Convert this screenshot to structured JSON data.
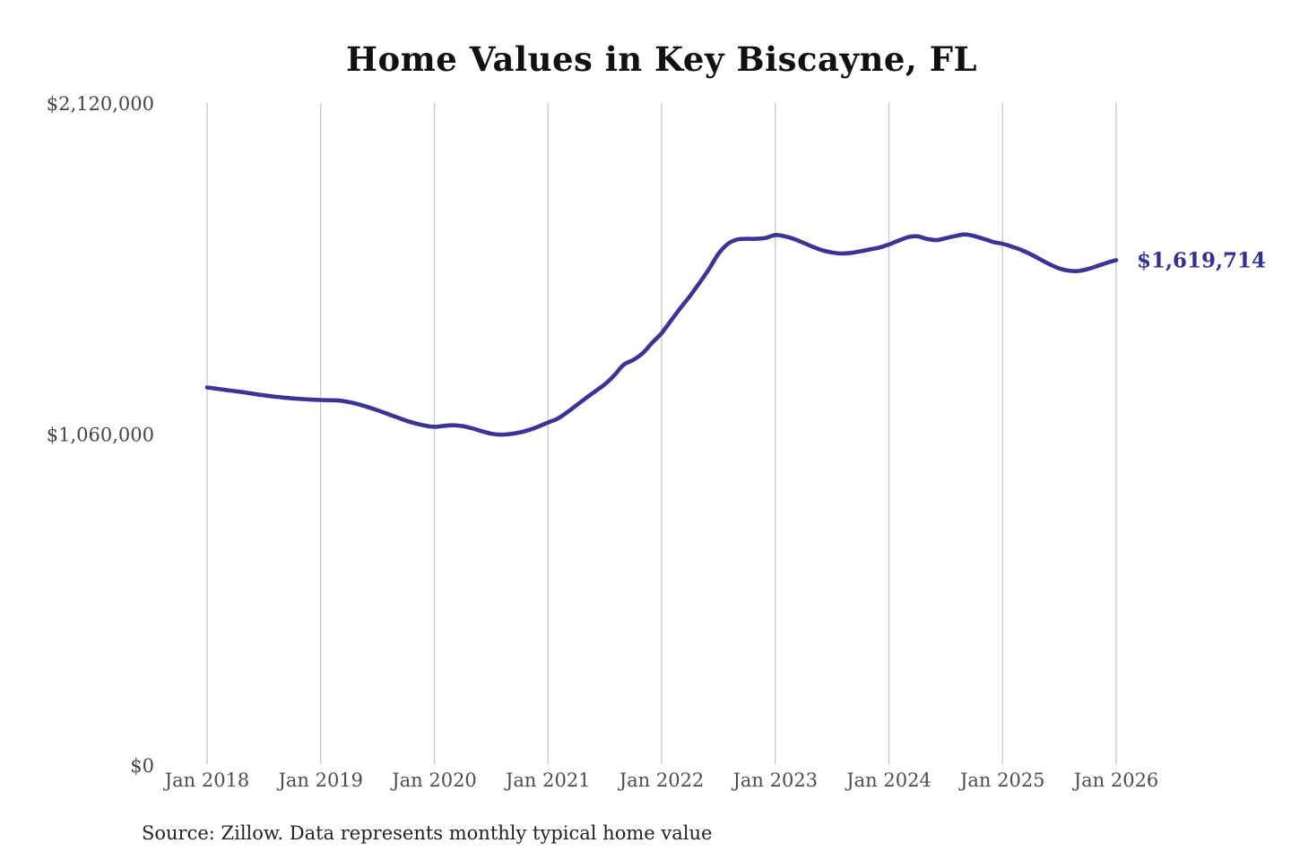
{
  "page": {
    "title": "Home Values in Key Biscayne, FL",
    "source_note": "Source: Zillow. Data represents monthly typical home value"
  },
  "colors": {
    "line": "#3b3494",
    "end_label": "#33308f",
    "gridline": "#cacaca",
    "x_tick_label": "#4d4d4d",
    "y_tick_label": "#444444",
    "title": "#111111",
    "source": "#222222",
    "background": "#ffffff"
  },
  "chart_data": {
    "type": "line",
    "title": "Home Values in Key Biscayne, FL",
    "xlabel": "",
    "ylabel": "",
    "grid": "vertical-only",
    "legend": "none",
    "ylim": [
      0,
      2120000
    ],
    "y_ticks": [
      {
        "label": "$0",
        "value": 0
      },
      {
        "label": "$1,060,000",
        "value": 1060000
      },
      {
        "label": "$2,120,000",
        "value": 2120000
      }
    ],
    "x_tick_labels": [
      "Jan 2018",
      "Jan 2019",
      "Jan 2020",
      "Jan 2021",
      "Jan 2022",
      "Jan 2023",
      "Jan 2024",
      "Jan 2025",
      "Jan 2026"
    ],
    "end_label": "$1,619,714",
    "end_value": 1619714,
    "series": [
      {
        "name": "Typical home value (monthly)",
        "start": "Jan 2018",
        "end": "Jan 2026",
        "interval": "monthly",
        "values": [
          1212000,
          1208000,
          1204000,
          1200000,
          1196000,
          1191000,
          1187000,
          1183000,
          1180000,
          1177000,
          1175000,
          1173000,
          1172000,
          1171000,
          1170000,
          1165000,
          1158000,
          1149000,
          1139000,
          1128000,
          1117000,
          1106000,
          1097000,
          1090000,
          1086000,
          1089000,
          1091000,
          1088000,
          1081000,
          1072000,
          1064000,
          1061000,
          1063000,
          1068000,
          1076000,
          1087000,
          1100000,
          1112000,
          1132000,
          1155000,
          1178000,
          1200000,
          1222000,
          1251000,
          1285000,
          1300000,
          1322000,
          1355000,
          1386000,
          1427000,
          1467000,
          1505000,
          1547000,
          1591000,
          1640000,
          1672000,
          1686000,
          1688000,
          1688000,
          1691000,
          1700000,
          1696000,
          1687000,
          1675000,
          1662000,
          1651000,
          1644000,
          1641000,
          1643000,
          1648000,
          1654000,
          1660000,
          1670000,
          1682000,
          1693000,
          1696000,
          1688000,
          1684000,
          1690000,
          1697000,
          1702000,
          1697000,
          1688000,
          1678000,
          1672000,
          1663000,
          1652000,
          1638000,
          1622000,
          1606000,
          1593000,
          1586000,
          1585000,
          1591000,
          1601000,
          1611000,
          1619714
        ]
      }
    ]
  }
}
